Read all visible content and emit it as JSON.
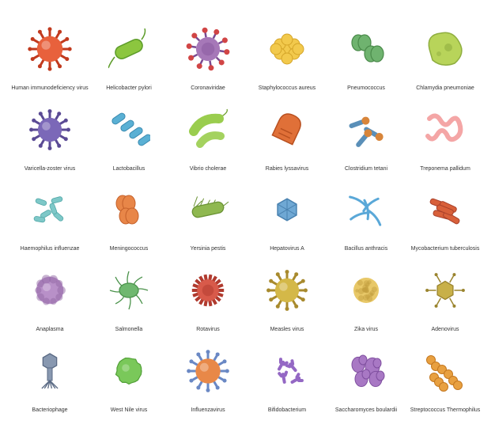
{
  "grid": {
    "rows": 5,
    "cols": 6,
    "background": "#ffffff",
    "label_fontsize": 7,
    "label_color": "#333333"
  },
  "items": [
    {
      "id": "hiv",
      "label": "Human immunodeficiency virus",
      "type": "spiky-sphere",
      "color": "#e8613c",
      "accent": "#c13a1e",
      "size": 58
    },
    {
      "id": "helicobacter",
      "label": "Helicobacter pylori",
      "type": "flagellate-rod",
      "color": "#8cc63f",
      "accent": "#5d9c2a",
      "size": 52
    },
    {
      "id": "coronaviridae",
      "label": "Coronaviridae",
      "type": "corona",
      "color": "#a678b8",
      "accent": "#7a4b92",
      "spike": "#d14545",
      "size": 58
    },
    {
      "id": "staph",
      "label": "Staphylococcus aureus",
      "type": "cluster",
      "color": "#f2c94c",
      "accent": "#d4a428",
      "size": 50
    },
    {
      "id": "pneumococcus",
      "label": "Pneumococcus",
      "type": "diplococcus",
      "color": "#6fb36f",
      "accent": "#4a8a4a",
      "size": 48
    },
    {
      "id": "chlamydia",
      "label": "Chlamydia pneumoniae",
      "type": "amoeba",
      "color": "#b8d45a",
      "accent": "#8fae3f",
      "size": 56
    },
    {
      "id": "varicella",
      "label": "Varicella-zoster virus",
      "type": "spiky-sphere",
      "color": "#7b68b8",
      "accent": "#5a4a94",
      "size": 54
    },
    {
      "id": "lactobacillus",
      "label": "Lactobacillus",
      "type": "rod-chain",
      "color": "#5ab0d4",
      "accent": "#3a8ab0",
      "size": 54
    },
    {
      "id": "vibrio",
      "label": "Vibrio cholerae",
      "type": "curved-rod",
      "color": "#9acd4e",
      "accent": "#6fa030",
      "size": 54
    },
    {
      "id": "rabies",
      "label": "Rabies lyssavirus",
      "type": "bullet",
      "color": "#e07038",
      "accent": "#b85020",
      "size": 50
    },
    {
      "id": "clostridium",
      "label": "Clostridium tetani",
      "type": "drumsticks",
      "color": "#5a8fb8",
      "accent": "#d8853a",
      "size": 50
    },
    {
      "id": "treponema",
      "label": "Treponema pallidum",
      "type": "spiral",
      "color": "#f4a6a6",
      "accent": "#e87878",
      "size": 52
    },
    {
      "id": "haemophilus",
      "label": "Haemophilus influenzae",
      "type": "small-rods",
      "color": "#7ec8c8",
      "accent": "#52a8a8",
      "size": 50
    },
    {
      "id": "meningococcus",
      "label": "Meningococcus",
      "type": "kidney-pairs",
      "color": "#e88648",
      "accent": "#c4602a",
      "size": 48
    },
    {
      "id": "yersinia",
      "label": "Yersinia pestis",
      "type": "hairy-rod",
      "color": "#8fb850",
      "accent": "#6a9234",
      "size": 54
    },
    {
      "id": "hepatovirus",
      "label": "Hepatovirus A",
      "type": "icosahedron",
      "color": "#6fa8d4",
      "accent": "#4a82b0",
      "size": 46
    },
    {
      "id": "bacillus",
      "label": "Bacillus anthracis",
      "type": "thin-rods",
      "color": "#5aa8d8",
      "accent": "#3a80b4",
      "size": 50
    },
    {
      "id": "mycobacterium",
      "label": "Mycobacterium tuberculosis",
      "type": "rod-bundle",
      "color": "#d8603a",
      "accent": "#a8402a",
      "size": 52
    },
    {
      "id": "anaplasma",
      "label": "Anaplasma",
      "type": "lumpy-sphere",
      "color": "#b890c8",
      "accent": "#9268a4",
      "size": 54
    },
    {
      "id": "salmonella",
      "label": "Salmonella",
      "type": "multi-flagella",
      "color": "#6fb86f",
      "accent": "#4a924a",
      "size": 54
    },
    {
      "id": "rotavirus",
      "label": "Rotavirus",
      "type": "wheel",
      "color": "#d85a4a",
      "accent": "#b03a2e",
      "size": 54
    },
    {
      "id": "measles",
      "label": "Measles virus",
      "type": "spiky-sphere",
      "color": "#d4b848",
      "accent": "#a88a2e",
      "size": 54
    },
    {
      "id": "zika",
      "label": "Zika virus",
      "type": "bumpy-sphere",
      "color": "#e8c868",
      "accent": "#c4a040",
      "size": 50
    },
    {
      "id": "adenovirus",
      "label": "Adenovirus",
      "type": "fiber-icosa",
      "color": "#c8b048",
      "accent": "#9a842e",
      "size": 52
    },
    {
      "id": "bacteriophage",
      "label": "Bacteriophage",
      "type": "phage",
      "color": "#8898b0",
      "accent": "#5a6a84",
      "size": 54
    },
    {
      "id": "westnile",
      "label": "West Nile virus",
      "type": "rough-sphere",
      "color": "#7ac85a",
      "accent": "#52a038",
      "size": 50
    },
    {
      "id": "influenza",
      "label": "Influenzavirus",
      "type": "spiky-sphere",
      "color": "#e88848",
      "accent": "#6a88c4",
      "size": 56
    },
    {
      "id": "bifido",
      "label": "Bifidobacterium",
      "type": "y-rods",
      "color": "#9468c4",
      "accent": "#6a48a0",
      "size": 50
    },
    {
      "id": "saccharomyces",
      "label": "Saccharomyces boulardii",
      "type": "budding",
      "color": "#a878c4",
      "accent": "#8050a0",
      "size": 50
    },
    {
      "id": "streptococcus",
      "label": "Streptococcus Thermophilus",
      "type": "cocci-chain",
      "color": "#e8a040",
      "accent": "#c47820",
      "size": 52
    }
  ]
}
